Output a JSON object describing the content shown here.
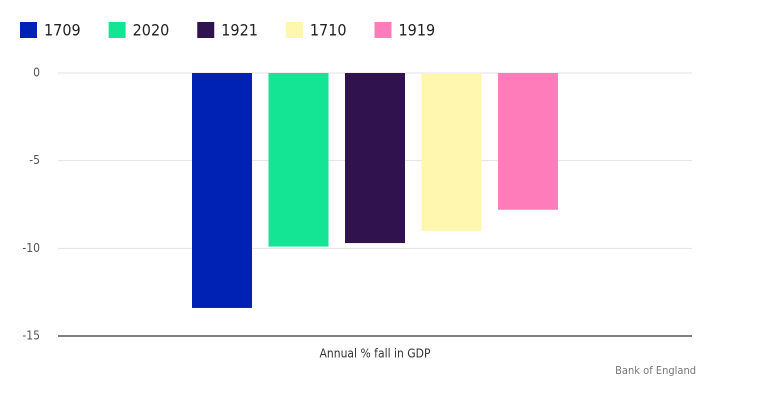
{
  "chart_data": {
    "type": "bar",
    "categories": [
      "Annual % fall in GDP"
    ],
    "series": [
      {
        "name": "1709",
        "color": "#0022b4",
        "values": [
          -13.4
        ]
      },
      {
        "name": "2020",
        "color": "#14e595",
        "values": [
          -9.9
        ]
      },
      {
        "name": "1921",
        "color": "#30124e",
        "values": [
          -9.7
        ]
      },
      {
        "name": "1710",
        "color": "#fff6b0",
        "values": [
          -9.0
        ]
      },
      {
        "name": "1919",
        "color": "#ff7cba",
        "values": [
          -7.8
        ]
      }
    ],
    "ylim": [
      -15,
      0
    ],
    "yticks": [
      0,
      -5,
      -10,
      -15
    ],
    "grid": true,
    "legend": "top-left",
    "source": "Bank of England"
  }
}
